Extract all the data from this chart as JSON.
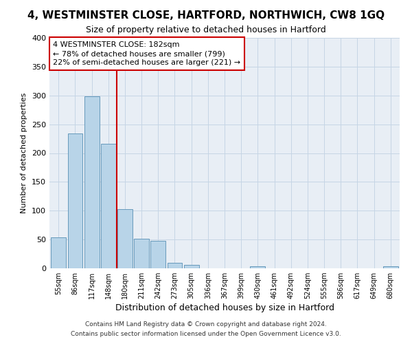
{
  "title": "4, WESTMINSTER CLOSE, HARTFORD, NORTHWICH, CW8 1GQ",
  "subtitle": "Size of property relative to detached houses in Hartford",
  "xlabel": "Distribution of detached houses by size in Hartford",
  "ylabel": "Number of detached properties",
  "bar_color": "#b8d4e8",
  "bar_edge_color": "#6699bb",
  "categories": [
    "55sqm",
    "86sqm",
    "117sqm",
    "148sqm",
    "180sqm",
    "211sqm",
    "242sqm",
    "273sqm",
    "305sqm",
    "336sqm",
    "367sqm",
    "399sqm",
    "430sqm",
    "461sqm",
    "492sqm",
    "524sqm",
    "555sqm",
    "586sqm",
    "617sqm",
    "649sqm",
    "680sqm"
  ],
  "values": [
    54,
    234,
    298,
    216,
    103,
    51,
    48,
    10,
    6,
    0,
    0,
    0,
    4,
    0,
    0,
    0,
    0,
    0,
    0,
    0,
    4
  ],
  "vline_color": "#cc0000",
  "annotation_title": "4 WESTMINSTER CLOSE: 182sqm",
  "annotation_line1": "← 78% of detached houses are smaller (799)",
  "annotation_line2": "22% of semi-detached houses are larger (221) →",
  "ylim": [
    0,
    400
  ],
  "yticks": [
    0,
    50,
    100,
    150,
    200,
    250,
    300,
    350,
    400
  ],
  "footer_line1": "Contains HM Land Registry data © Crown copyright and database right 2024.",
  "footer_line2": "Contains public sector information licensed under the Open Government Licence v3.0.",
  "background_color": "#ffffff",
  "plot_bg_color": "#e8eef5",
  "grid_color": "#c5d5e5"
}
